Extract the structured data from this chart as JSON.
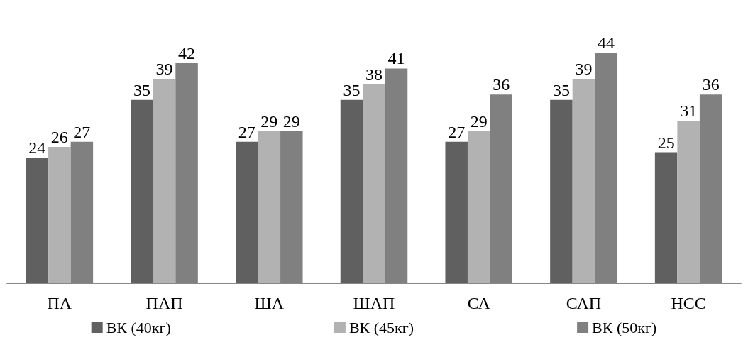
{
  "chart_data": {
    "type": "bar",
    "categories": [
      "ПА",
      "ПАП",
      "ША",
      "ШАП",
      "СА",
      "САП",
      "НСС"
    ],
    "series": [
      {
        "name": "ВК (40кг)",
        "color": "#606060",
        "values": [
          24,
          35,
          27,
          35,
          27,
          35,
          25
        ]
      },
      {
        "name": "ВК (45кг)",
        "color": "#b2b2b2",
        "values": [
          26,
          39,
          29,
          38,
          29,
          39,
          31
        ]
      },
      {
        "name": "ВК (50кг)",
        "color": "#808080",
        "values": [
          27,
          42,
          29,
          41,
          36,
          44,
          36
        ]
      }
    ],
    "data_labels": true,
    "legend": "bottom",
    "grid": false
  }
}
